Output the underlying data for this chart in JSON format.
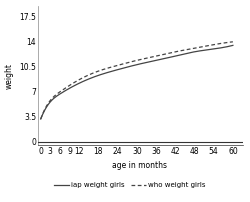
{
  "title": "",
  "xlabel": "age in months",
  "ylabel": "weight",
  "x_ticks": [
    0,
    3,
    6,
    9,
    12,
    18,
    24,
    30,
    36,
    42,
    48,
    54,
    60
  ],
  "y_ticks": [
    0,
    3.5,
    7,
    10.5,
    14,
    17.5
  ],
  "ylim": [
    -0.5,
    19.0
  ],
  "xlim": [
    -1,
    63
  ],
  "iap_x": [
    0,
    3,
    6,
    9,
    12,
    18,
    24,
    30,
    36,
    42,
    48,
    54,
    60
  ],
  "iap_y": [
    3.2,
    5.6,
    6.7,
    7.5,
    8.2,
    9.3,
    10.1,
    10.8,
    11.4,
    12.0,
    12.6,
    13.0,
    13.5
  ],
  "who_x": [
    0,
    3,
    6,
    9,
    12,
    18,
    24,
    30,
    36,
    42,
    48,
    54,
    60
  ],
  "who_y": [
    3.2,
    5.8,
    7.0,
    7.9,
    8.7,
    9.9,
    10.7,
    11.4,
    12.0,
    12.6,
    13.1,
    13.6,
    14.0
  ],
  "iap_color": "#444444",
  "who_color": "#444444",
  "bg_color": "#ffffff",
  "legend_iap": "iap weight girls",
  "legend_who": "who weight girls",
  "line_width": 0.9,
  "fontsize": 5.5
}
